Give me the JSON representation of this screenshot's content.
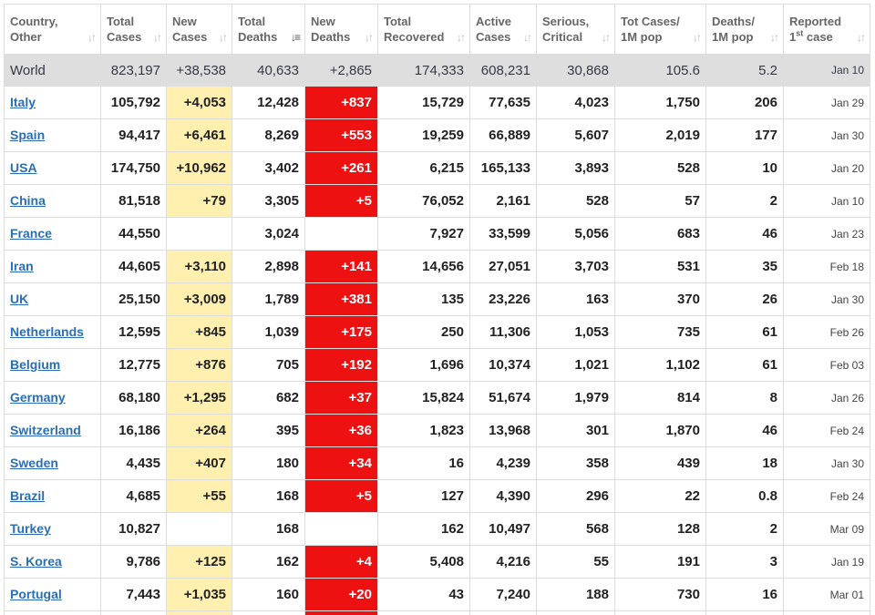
{
  "headers": [
    {
      "line1": "Country,",
      "line2": "Other",
      "sup": ""
    },
    {
      "line1": "Total",
      "line2": "Cases",
      "sup": ""
    },
    {
      "line1": "New",
      "line2": "Cases",
      "sup": ""
    },
    {
      "line1": "Total",
      "line2": "Deaths",
      "sup": ""
    },
    {
      "line1": "New",
      "line2": "Deaths",
      "sup": ""
    },
    {
      "line1": "Total",
      "line2": "Recovered",
      "sup": ""
    },
    {
      "line1": "Active",
      "line2": "Cases",
      "sup": ""
    },
    {
      "line1": "Serious,",
      "line2": "Critical",
      "sup": ""
    },
    {
      "line1": "Tot Cases/",
      "line2": "1M pop",
      "sup": ""
    },
    {
      "line1": "Deaths/",
      "line2": "1M pop",
      "sup": ""
    },
    {
      "line1": "Reported",
      "line2": " case",
      "sup": "st",
      "line2_prefix": "1"
    }
  ],
  "sort_icon": "sort-arrows-icon",
  "active_sort_column": 3,
  "colors": {
    "new_cases_bg": "#fff0b0",
    "new_deaths_bg": "#ee1111",
    "world_row_bg": "#dedede",
    "link": "#2a6fb5"
  },
  "world": {
    "country": "World",
    "total_cases": "823,197",
    "new_cases": "+38,538",
    "total_deaths": "40,633",
    "new_deaths": "+2,865",
    "total_recovered": "174,333",
    "active_cases": "608,231",
    "serious": "30,868",
    "cases_per_1m": "105.6",
    "deaths_per_1m": "5.2",
    "reported": "Jan 10"
  },
  "rows": [
    {
      "country": "Italy",
      "total_cases": "105,792",
      "new_cases": "+4,053",
      "total_deaths": "12,428",
      "new_deaths": "+837",
      "total_recovered": "15,729",
      "active_cases": "77,635",
      "serious": "4,023",
      "cases_per_1m": "1,750",
      "deaths_per_1m": "206",
      "reported": "Jan 29"
    },
    {
      "country": "Spain",
      "total_cases": "94,417",
      "new_cases": "+6,461",
      "total_deaths": "8,269",
      "new_deaths": "+553",
      "total_recovered": "19,259",
      "active_cases": "66,889",
      "serious": "5,607",
      "cases_per_1m": "2,019",
      "deaths_per_1m": "177",
      "reported": "Jan 30"
    },
    {
      "country": "USA",
      "total_cases": "174,750",
      "new_cases": "+10,962",
      "total_deaths": "3,402",
      "new_deaths": "+261",
      "total_recovered": "6,215",
      "active_cases": "165,133",
      "serious": "3,893",
      "cases_per_1m": "528",
      "deaths_per_1m": "10",
      "reported": "Jan 20"
    },
    {
      "country": "China",
      "total_cases": "81,518",
      "new_cases": "+79",
      "total_deaths": "3,305",
      "new_deaths": "+5",
      "total_recovered": "76,052",
      "active_cases": "2,161",
      "serious": "528",
      "cases_per_1m": "57",
      "deaths_per_1m": "2",
      "reported": "Jan 10"
    },
    {
      "country": "France",
      "total_cases": "44,550",
      "new_cases": "",
      "total_deaths": "3,024",
      "new_deaths": "",
      "total_recovered": "7,927",
      "active_cases": "33,599",
      "serious": "5,056",
      "cases_per_1m": "683",
      "deaths_per_1m": "46",
      "reported": "Jan 23"
    },
    {
      "country": "Iran",
      "total_cases": "44,605",
      "new_cases": "+3,110",
      "total_deaths": "2,898",
      "new_deaths": "+141",
      "total_recovered": "14,656",
      "active_cases": "27,051",
      "serious": "3,703",
      "cases_per_1m": "531",
      "deaths_per_1m": "35",
      "reported": "Feb 18"
    },
    {
      "country": "UK",
      "total_cases": "25,150",
      "new_cases": "+3,009",
      "total_deaths": "1,789",
      "new_deaths": "+381",
      "total_recovered": "135",
      "active_cases": "23,226",
      "serious": "163",
      "cases_per_1m": "370",
      "deaths_per_1m": "26",
      "reported": "Jan 30"
    },
    {
      "country": "Netherlands",
      "total_cases": "12,595",
      "new_cases": "+845",
      "total_deaths": "1,039",
      "new_deaths": "+175",
      "total_recovered": "250",
      "active_cases": "11,306",
      "serious": "1,053",
      "cases_per_1m": "735",
      "deaths_per_1m": "61",
      "reported": "Feb 26"
    },
    {
      "country": "Belgium",
      "total_cases": "12,775",
      "new_cases": "+876",
      "total_deaths": "705",
      "new_deaths": "+192",
      "total_recovered": "1,696",
      "active_cases": "10,374",
      "serious": "1,021",
      "cases_per_1m": "1,102",
      "deaths_per_1m": "61",
      "reported": "Feb 03"
    },
    {
      "country": "Germany",
      "total_cases": "68,180",
      "new_cases": "+1,295",
      "total_deaths": "682",
      "new_deaths": "+37",
      "total_recovered": "15,824",
      "active_cases": "51,674",
      "serious": "1,979",
      "cases_per_1m": "814",
      "deaths_per_1m": "8",
      "reported": "Jan 26"
    },
    {
      "country": "Switzerland",
      "total_cases": "16,186",
      "new_cases": "+264",
      "total_deaths": "395",
      "new_deaths": "+36",
      "total_recovered": "1,823",
      "active_cases": "13,968",
      "serious": "301",
      "cases_per_1m": "1,870",
      "deaths_per_1m": "46",
      "reported": "Feb 24"
    },
    {
      "country": "Sweden",
      "total_cases": "4,435",
      "new_cases": "+407",
      "total_deaths": "180",
      "new_deaths": "+34",
      "total_recovered": "16",
      "active_cases": "4,239",
      "serious": "358",
      "cases_per_1m": "439",
      "deaths_per_1m": "18",
      "reported": "Jan 30"
    },
    {
      "country": "Brazil",
      "total_cases": "4,685",
      "new_cases": "+55",
      "total_deaths": "168",
      "new_deaths": "+5",
      "total_recovered": "127",
      "active_cases": "4,390",
      "serious": "296",
      "cases_per_1m": "22",
      "deaths_per_1m": "0.8",
      "reported": "Feb 24"
    },
    {
      "country": "Turkey",
      "total_cases": "10,827",
      "new_cases": "",
      "total_deaths": "168",
      "new_deaths": "",
      "total_recovered": "162",
      "active_cases": "10,497",
      "serious": "568",
      "cases_per_1m": "128",
      "deaths_per_1m": "2",
      "reported": "Mar 09"
    },
    {
      "country": "S. Korea",
      "total_cases": "9,786",
      "new_cases": "+125",
      "total_deaths": "162",
      "new_deaths": "+4",
      "total_recovered": "5,408",
      "active_cases": "4,216",
      "serious": "55",
      "cases_per_1m": "191",
      "deaths_per_1m": "3",
      "reported": "Jan 19"
    },
    {
      "country": "Portugal",
      "total_cases": "7,443",
      "new_cases": "+1,035",
      "total_deaths": "160",
      "new_deaths": "+20",
      "total_recovered": "43",
      "active_cases": "7,240",
      "serious": "188",
      "cases_per_1m": "730",
      "deaths_per_1m": "16",
      "reported": "Mar 01"
    },
    {
      "country": "",
      "total_cases": "",
      "new_cases": "",
      "total_deaths": "",
      "new_deaths": "",
      "total_recovered": "",
      "active_cases": "",
      "serious": "",
      "cases_per_1m": "",
      "deaths_per_1m": "",
      "reported": "",
      "partial": true,
      "new_cases_highlight": true,
      "new_deaths_highlight": true
    }
  ]
}
